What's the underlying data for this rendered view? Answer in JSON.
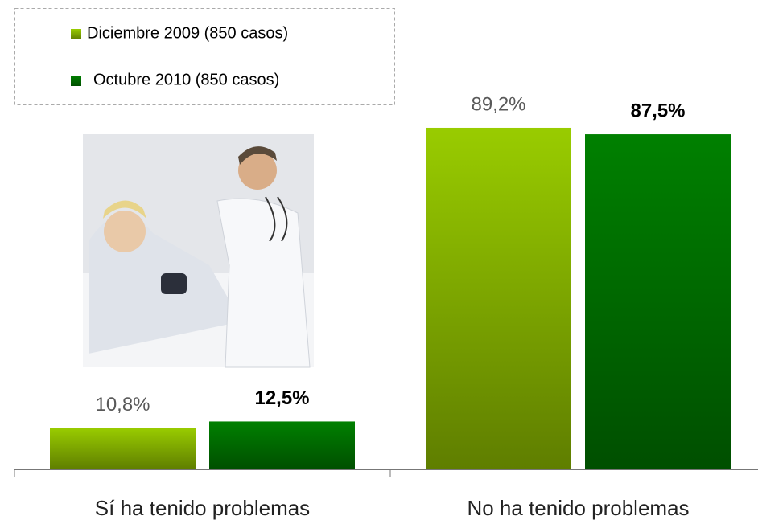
{
  "chart_data": {
    "type": "bar",
    "categories": [
      "Sí ha tenido problemas",
      "No ha tenido problemas"
    ],
    "series": [
      {
        "name": "Diciembre 2009 (850 casos)",
        "color": "#99cc00",
        "values": [
          10.8,
          89.2
        ],
        "value_labels": [
          "10,8%",
          "89,2%"
        ]
      },
      {
        "name": "Octubre 2010 (850 casos)",
        "color": "#008000",
        "values": [
          12.5,
          87.5
        ],
        "value_labels": [
          "12,5%",
          "87,5%"
        ]
      }
    ],
    "ylim": [
      0,
      100
    ]
  }
}
